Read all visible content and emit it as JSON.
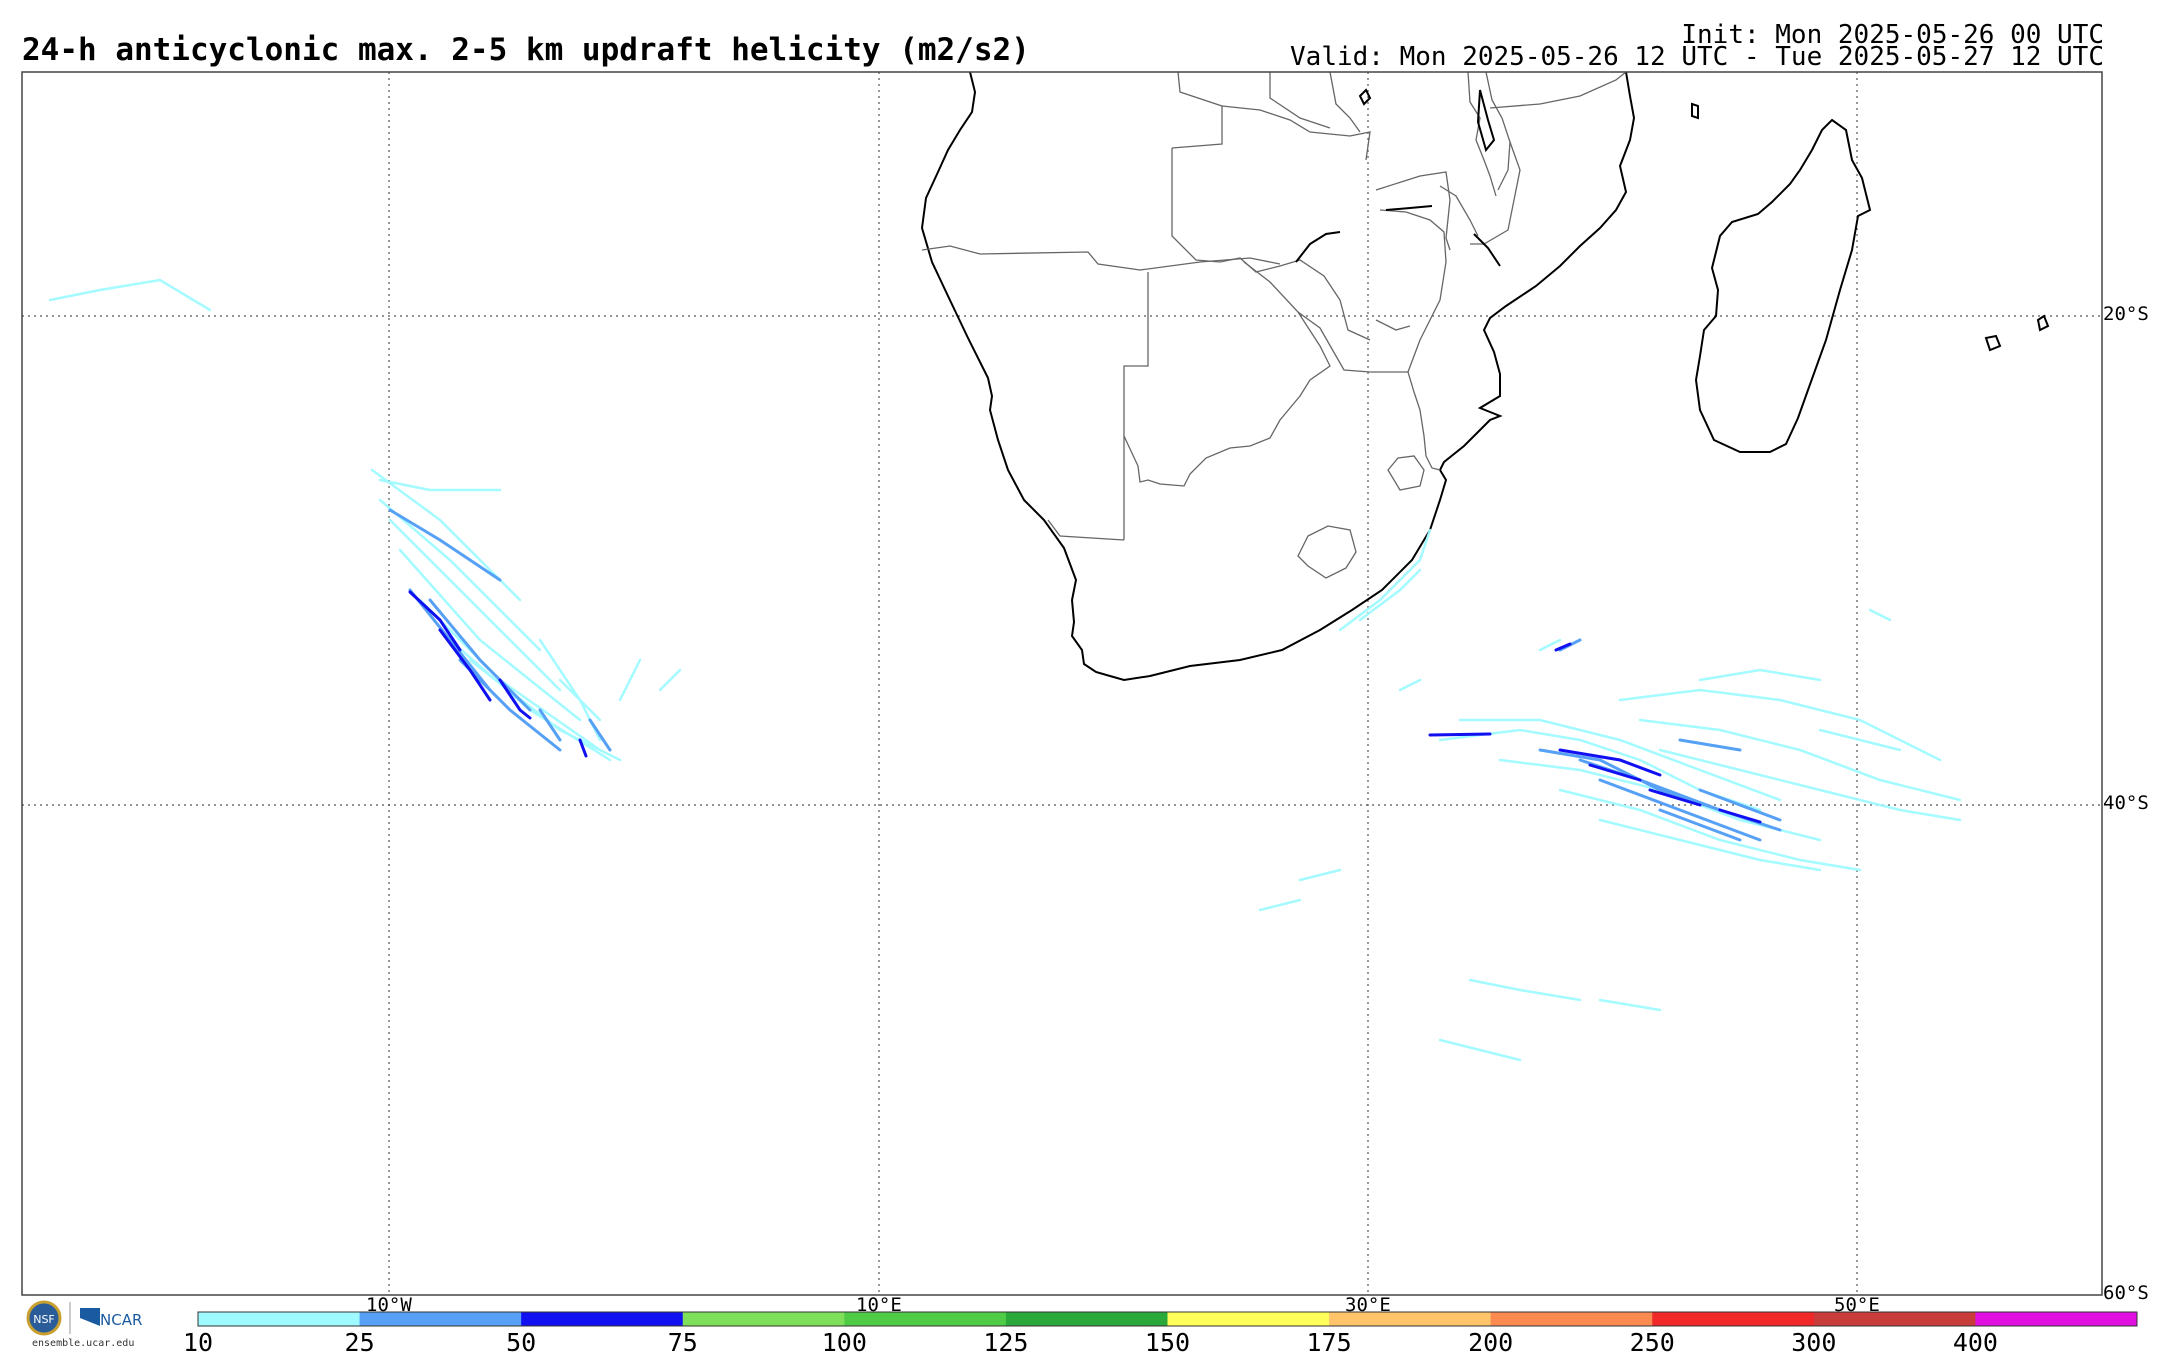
{
  "header": {
    "title": "24-h anticyclonic max. 2-5 km updraft helicity (m2/s2)",
    "init": "Init: Mon 2025-05-26 00 UTC",
    "valid": "Valid: Mon 2025-05-26 12 UTC - Tue 2025-05-27 12 UTC"
  },
  "map": {
    "region": "Southern Africa and surrounding South Atlantic / Indian Ocean",
    "longitude_labels": [
      "10°W",
      "10°E",
      "30°E",
      "50°E"
    ],
    "latitude_labels": [
      "20°S",
      "40°S",
      "60°S"
    ],
    "gridline_style": "dotted",
    "gridline_color": "#555555",
    "coastline_color": "#000000",
    "border_color": "#666666"
  },
  "colorbar": {
    "thresholds": [
      "10",
      "25",
      "50",
      "75",
      "100",
      "125",
      "150",
      "175",
      "200",
      "250",
      "300",
      "400"
    ],
    "colors": [
      "#9ffaff",
      "#56a0f5",
      "#1010f0",
      "#7ee05a",
      "#4fcb46",
      "#2aa83a",
      "#ffff5a",
      "#ffc46a",
      "#fa8a50",
      "#f02828",
      "#c83c3c",
      "#e010e0"
    ]
  },
  "footer": {
    "logo_left": "NSF",
    "logo_right": "NCAR",
    "site": "ensemble.ucar.edu"
  }
}
